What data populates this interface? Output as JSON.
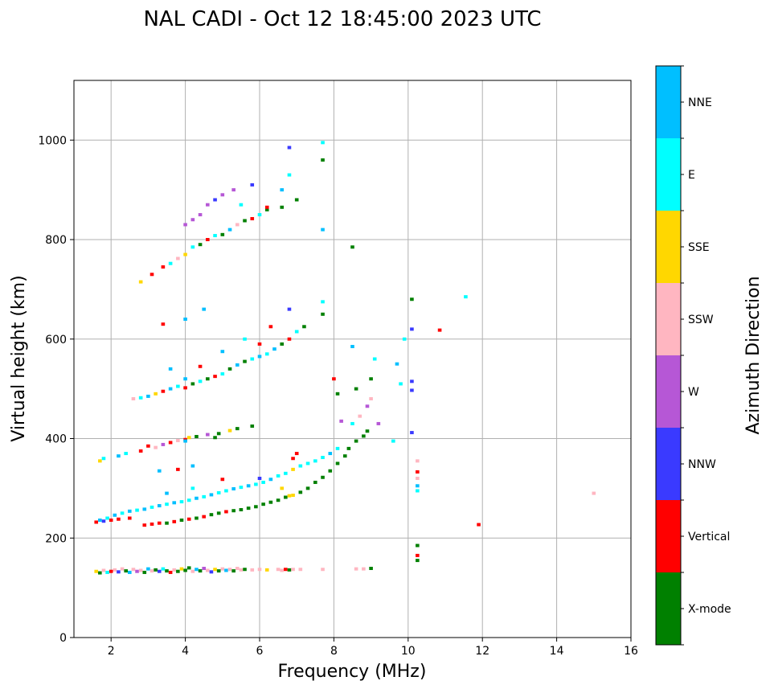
{
  "chart_data": {
    "type": "scatter",
    "title": "NAL CADI - Oct 12 18:45:00 2023 UTC",
    "xlabel": "Frequency (MHz)",
    "ylabel": "Virtual height (km)",
    "xlim": [
      1,
      16
    ],
    "ylim": [
      0,
      1120
    ],
    "xticks": [
      "2",
      "4",
      "6",
      "8",
      "10",
      "12",
      "14",
      "16"
    ],
    "yticks": [
      "0",
      "200",
      "400",
      "600",
      "800",
      "1000"
    ],
    "grid": true,
    "colorbar": {
      "label": "Azimuth Direction",
      "categories": [
        "X-mode",
        "Vertical",
        "NNW",
        "W",
        "SSW",
        "SSE",
        "E",
        "NNE"
      ],
      "colors": [
        "#008000",
        "#ff0000",
        "#3a3aff",
        "#b657d6",
        "#ffb6c1",
        "#ffd700",
        "#00ffff",
        "#00bfff"
      ]
    },
    "points_format": [
      "frequency_mhz",
      "virtual_height_km",
      "category_index"
    ],
    "points": [
      [
        1.6,
        133,
        5
      ],
      [
        1.7,
        130,
        0
      ],
      [
        1.8,
        135,
        4
      ],
      [
        1.9,
        131,
        6
      ],
      [
        2.0,
        133,
        1
      ],
      [
        2.1,
        136,
        4
      ],
      [
        2.2,
        132,
        2
      ],
      [
        2.3,
        138,
        4
      ],
      [
        2.4,
        134,
        0
      ],
      [
        2.5,
        131,
        7
      ],
      [
        2.6,
        137,
        4
      ],
      [
        2.7,
        133,
        3
      ],
      [
        2.8,
        135,
        4
      ],
      [
        2.9,
        131,
        0
      ],
      [
        3.0,
        138,
        7
      ],
      [
        3.1,
        134,
        4
      ],
      [
        3.2,
        136,
        0
      ],
      [
        3.3,
        133,
        2
      ],
      [
        3.4,
        138,
        6
      ],
      [
        3.5,
        134,
        0
      ],
      [
        3.6,
        131,
        1
      ],
      [
        3.7,
        136,
        4
      ],
      [
        3.8,
        133,
        0
      ],
      [
        3.9,
        138,
        5
      ],
      [
        4.0,
        135,
        0
      ],
      [
        4.1,
        140,
        0
      ],
      [
        4.2,
        133,
        4
      ],
      [
        4.3,
        137,
        7
      ],
      [
        4.4,
        134,
        0
      ],
      [
        4.5,
        139,
        3
      ],
      [
        4.6,
        135,
        4
      ],
      [
        4.7,
        132,
        2
      ],
      [
        4.8,
        137,
        5
      ],
      [
        4.9,
        134,
        0
      ],
      [
        5.0,
        138,
        4
      ],
      [
        5.1,
        135,
        7
      ],
      [
        5.2,
        137,
        4
      ],
      [
        5.3,
        134,
        0
      ],
      [
        5.4,
        139,
        4
      ],
      [
        5.5,
        136,
        4
      ],
      [
        5.6,
        137,
        0
      ],
      [
        5.8,
        136,
        4
      ],
      [
        6.0,
        137,
        4
      ],
      [
        6.2,
        136,
        5
      ],
      [
        6.5,
        137,
        4
      ],
      [
        6.6,
        135,
        4
      ],
      [
        6.7,
        137,
        1
      ],
      [
        6.8,
        136,
        0
      ],
      [
        6.9,
        137,
        4
      ],
      [
        7.1,
        137,
        4
      ],
      [
        7.7,
        137,
        4
      ],
      [
        8.6,
        138,
        4
      ],
      [
        8.8,
        138,
        4
      ],
      [
        9.0,
        139,
        0
      ],
      [
        1.6,
        232,
        1
      ],
      [
        1.8,
        234,
        2
      ],
      [
        2.0,
        236,
        1
      ],
      [
        2.2,
        238,
        1
      ],
      [
        2.5,
        240,
        1
      ],
      [
        2.9,
        226,
        1
      ],
      [
        3.1,
        228,
        1
      ],
      [
        3.3,
        230,
        1
      ],
      [
        3.5,
        230,
        0
      ],
      [
        3.7,
        233,
        1
      ],
      [
        3.9,
        236,
        0
      ],
      [
        4.1,
        238,
        1
      ],
      [
        4.3,
        240,
        0
      ],
      [
        4.5,
        243,
        1
      ],
      [
        4.7,
        247,
        0
      ],
      [
        4.9,
        250,
        0
      ],
      [
        5.1,
        253,
        1
      ],
      [
        5.3,
        255,
        0
      ],
      [
        5.5,
        257,
        0
      ],
      [
        5.7,
        260,
        0
      ],
      [
        5.9,
        263,
        0
      ],
      [
        6.1,
        268,
        0
      ],
      [
        6.3,
        272,
        0
      ],
      [
        6.5,
        276,
        0
      ],
      [
        6.7,
        282,
        0
      ],
      [
        6.9,
        286,
        5
      ],
      [
        7.1,
        292,
        0
      ],
      [
        7.3,
        300,
        0
      ],
      [
        7.5,
        312,
        0
      ],
      [
        7.7,
        322,
        0
      ],
      [
        7.9,
        335,
        0
      ],
      [
        8.1,
        350,
        0
      ],
      [
        8.3,
        365,
        0
      ],
      [
        8.4,
        380,
        0
      ],
      [
        8.6,
        395,
        0
      ],
      [
        8.8,
        405,
        0
      ],
      [
        8.9,
        415,
        0
      ],
      [
        1.7,
        236,
        7
      ],
      [
        1.9,
        240,
        6
      ],
      [
        2.1,
        246,
        7
      ],
      [
        2.3,
        250,
        6
      ],
      [
        2.5,
        254,
        7
      ],
      [
        2.7,
        256,
        6
      ],
      [
        2.9,
        258,
        7
      ],
      [
        3.1,
        262,
        6
      ],
      [
        3.3,
        265,
        7
      ],
      [
        3.5,
        268,
        6
      ],
      [
        3.7,
        271,
        7
      ],
      [
        3.9,
        273,
        6
      ],
      [
        4.1,
        276,
        6
      ],
      [
        4.3,
        280,
        7
      ],
      [
        4.5,
        283,
        6
      ],
      [
        4.7,
        287,
        7
      ],
      [
        4.9,
        291,
        6
      ],
      [
        5.1,
        295,
        6
      ],
      [
        5.3,
        299,
        7
      ],
      [
        5.5,
        302,
        6
      ],
      [
        5.7,
        305,
        7
      ],
      [
        5.9,
        308,
        6
      ],
      [
        6.1,
        312,
        6
      ],
      [
        6.3,
        318,
        7
      ],
      [
        6.5,
        325,
        6
      ],
      [
        6.7,
        330,
        6
      ],
      [
        6.9,
        338,
        5
      ],
      [
        7.1,
        345,
        6
      ],
      [
        7.3,
        350,
        6
      ],
      [
        7.5,
        355,
        6
      ],
      [
        7.7,
        362,
        6
      ],
      [
        7.9,
        370,
        7
      ],
      [
        8.1,
        380,
        6
      ],
      [
        3.5,
        290,
        7
      ],
      [
        4.2,
        300,
        6
      ],
      [
        5.0,
        318,
        1
      ],
      [
        6.0,
        320,
        2
      ],
      [
        6.9,
        360,
        1
      ],
      [
        7.0,
        370,
        1
      ],
      [
        6.6,
        300,
        5
      ],
      [
        6.8,
        285,
        5
      ],
      [
        1.7,
        355,
        5
      ],
      [
        1.8,
        360,
        6
      ],
      [
        2.2,
        365,
        7
      ],
      [
        2.4,
        370,
        6
      ],
      [
        2.8,
        375,
        1
      ],
      [
        3.0,
        385,
        1
      ],
      [
        3.2,
        382,
        4
      ],
      [
        3.4,
        388,
        3
      ],
      [
        3.6,
        392,
        1
      ],
      [
        3.8,
        396,
        4
      ],
      [
        4.0,
        398,
        1
      ],
      [
        4.1,
        402,
        5
      ],
      [
        4.3,
        404,
        0
      ],
      [
        4.6,
        408,
        3
      ],
      [
        4.9,
        410,
        0
      ],
      [
        5.2,
        416,
        5
      ],
      [
        5.4,
        420,
        0
      ],
      [
        5.8,
        425,
        0
      ],
      [
        3.3,
        335,
        7
      ],
      [
        3.8,
        338,
        1
      ],
      [
        4.2,
        345,
        7
      ],
      [
        4.0,
        395,
        7
      ],
      [
        4.8,
        402,
        0
      ],
      [
        2.6,
        480,
        4
      ],
      [
        2.8,
        482,
        6
      ],
      [
        3.0,
        485,
        7
      ],
      [
        3.2,
        490,
        5
      ],
      [
        3.4,
        495,
        1
      ],
      [
        3.6,
        500,
        7
      ],
      [
        3.8,
        505,
        6
      ],
      [
        4.0,
        502,
        1
      ],
      [
        4.2,
        510,
        0
      ],
      [
        4.4,
        515,
        6
      ],
      [
        4.6,
        520,
        0
      ],
      [
        4.8,
        525,
        1
      ],
      [
        5.0,
        530,
        6
      ],
      [
        5.2,
        540,
        0
      ],
      [
        5.4,
        548,
        7
      ],
      [
        5.6,
        555,
        0
      ],
      [
        5.8,
        560,
        6
      ],
      [
        6.0,
        565,
        7
      ],
      [
        6.2,
        570,
        6
      ],
      [
        6.4,
        580,
        7
      ],
      [
        6.6,
        590,
        0
      ],
      [
        6.8,
        600,
        1
      ],
      [
        7.0,
        615,
        6
      ],
      [
        7.2,
        625,
        0
      ],
      [
        3.6,
        540,
        7
      ],
      [
        4.0,
        520,
        7
      ],
      [
        4.4,
        545,
        1
      ],
      [
        5.0,
        575,
        7
      ],
      [
        5.6,
        600,
        6
      ],
      [
        6.0,
        590,
        1
      ],
      [
        6.3,
        625,
        1
      ],
      [
        3.4,
        630,
        1
      ],
      [
        4.0,
        640,
        7
      ],
      [
        4.5,
        660,
        7
      ],
      [
        6.8,
        660,
        2
      ],
      [
        7.7,
        650,
        0
      ],
      [
        7.7,
        675,
        6
      ],
      [
        2.8,
        715,
        5
      ],
      [
        3.1,
        730,
        1
      ],
      [
        3.4,
        745,
        1
      ],
      [
        3.6,
        752,
        6
      ],
      [
        3.8,
        762,
        4
      ],
      [
        4.0,
        770,
        5
      ],
      [
        4.2,
        785,
        6
      ],
      [
        4.4,
        790,
        0
      ],
      [
        4.6,
        800,
        1
      ],
      [
        4.8,
        808,
        6
      ],
      [
        5.0,
        810,
        0
      ],
      [
        5.2,
        820,
        7
      ],
      [
        5.4,
        830,
        4
      ],
      [
        5.6,
        838,
        0
      ],
      [
        5.8,
        842,
        1
      ],
      [
        6.0,
        850,
        6
      ],
      [
        6.2,
        860,
        0
      ],
      [
        6.6,
        865,
        0
      ],
      [
        4.0,
        830,
        3
      ],
      [
        4.2,
        840,
        3
      ],
      [
        4.4,
        850,
        3
      ],
      [
        4.6,
        870,
        3
      ],
      [
        4.8,
        880,
        2
      ],
      [
        5.0,
        890,
        3
      ],
      [
        5.3,
        900,
        3
      ],
      [
        5.8,
        910,
        2
      ],
      [
        6.6,
        900,
        7
      ],
      [
        6.8,
        930,
        6
      ],
      [
        6.8,
        985,
        2
      ],
      [
        7.0,
        880,
        0
      ],
      [
        7.7,
        960,
        0
      ],
      [
        7.7,
        995,
        6
      ],
      [
        5.5,
        870,
        6
      ],
      [
        6.2,
        865,
        1
      ],
      [
        7.7,
        820,
        7
      ],
      [
        8.5,
        785,
        0
      ],
      [
        8.0,
        520,
        1
      ],
      [
        8.1,
        490,
        0
      ],
      [
        8.2,
        435,
        3
      ],
      [
        8.5,
        430,
        6
      ],
      [
        8.7,
        445,
        4
      ],
      [
        8.9,
        465,
        3
      ],
      [
        9.0,
        480,
        4
      ],
      [
        9.2,
        430,
        3
      ],
      [
        8.5,
        585,
        7
      ],
      [
        9.1,
        560,
        6
      ],
      [
        9.0,
        520,
        0
      ],
      [
        8.6,
        500,
        0
      ],
      [
        9.7,
        550,
        7
      ],
      [
        9.8,
        510,
        6
      ],
      [
        9.9,
        600,
        6
      ],
      [
        10.1,
        680,
        0
      ],
      [
        10.1,
        620,
        2
      ],
      [
        10.1,
        515,
        2
      ],
      [
        10.1,
        497,
        2
      ],
      [
        10.1,
        412,
        2
      ],
      [
        10.25,
        355,
        4
      ],
      [
        10.25,
        333,
        1
      ],
      [
        10.25,
        320,
        4
      ],
      [
        10.25,
        305,
        7
      ],
      [
        10.25,
        295,
        6
      ],
      [
        10.25,
        185,
        0
      ],
      [
        10.25,
        165,
        1
      ],
      [
        10.25,
        155,
        0
      ],
      [
        10.85,
        618,
        1
      ],
      [
        11.55,
        685,
        6
      ],
      [
        11.9,
        227,
        1
      ],
      [
        15.0,
        290,
        4
      ],
      [
        9.6,
        395,
        6
      ]
    ]
  }
}
